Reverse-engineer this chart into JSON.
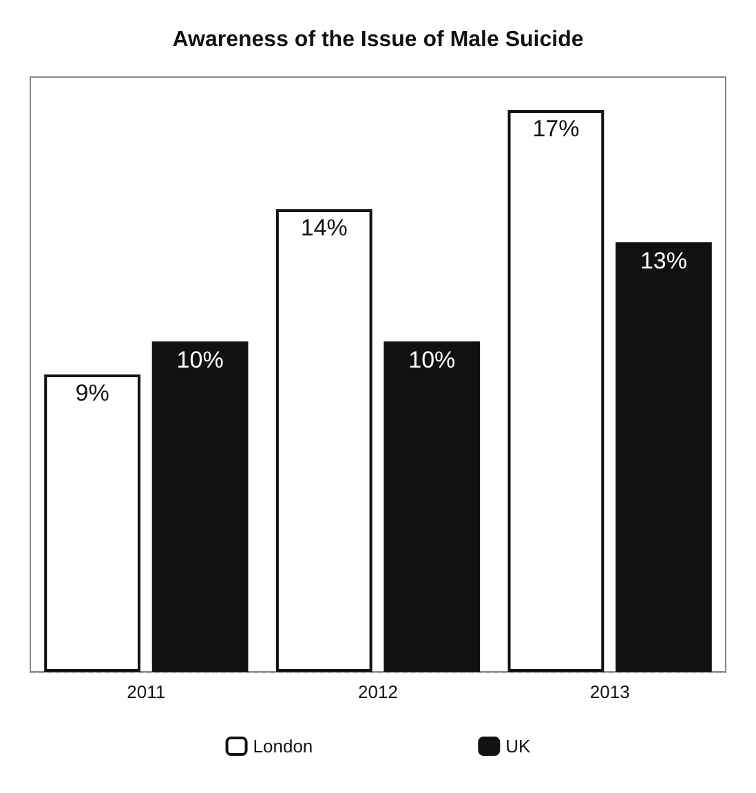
{
  "chart_data": {
    "type": "bar",
    "title": "Awareness of the Issue of Male Suicide",
    "categories": [
      "2011",
      "2012",
      "2013"
    ],
    "series": [
      {
        "name": "London",
        "color": "#ffffff",
        "values": [
          9,
          14,
          17
        ],
        "value_labels": [
          "9%",
          "14%",
          "17%"
        ]
      },
      {
        "name": "UK",
        "color": "#111111",
        "values": [
          10,
          10,
          13
        ],
        "value_labels": [
          "10%",
          "10%",
          "13%"
        ]
      }
    ],
    "legend": "bottom"
  }
}
